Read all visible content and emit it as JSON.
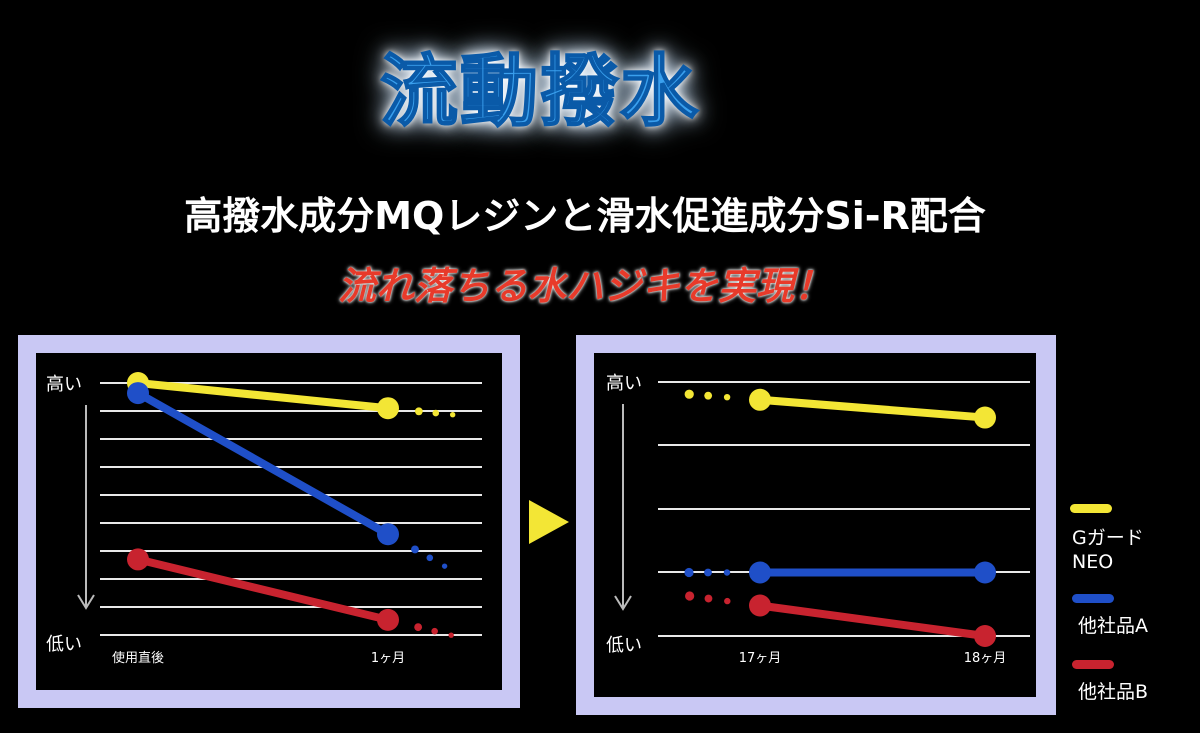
{
  "title": "流動撥水",
  "subtitle": "高撥水成分MQレジンと滑水促進成分Si-R配合",
  "tagline": "流れ落ちる水ハジキを実現！",
  "colors": {
    "series_g_guard": "#f3e635",
    "series_a": "#1f4fc8",
    "series_b": "#c8232f",
    "panel_frame": "#c9c8f4",
    "next_arrow": "#f3e635"
  },
  "legend": {
    "items": [
      {
        "label_line1": "Gガード",
        "label_line2": "NEO",
        "color": "#f3e635"
      },
      {
        "label_line1": "他社品A",
        "label_line2": "",
        "color": "#1f4fc8"
      },
      {
        "label_line1": "他社品B",
        "label_line2": "",
        "color": "#c8232f"
      }
    ]
  },
  "chart_data": [
    {
      "type": "line",
      "title": "",
      "y_axis": {
        "top_label": "高い",
        "bottom_label": "低い",
        "min": 0,
        "max": 10,
        "direction_arrow": "down"
      },
      "x": [
        "使用直後",
        "1ヶ月"
      ],
      "series": [
        {
          "name": "Gガード NEO",
          "values": [
            10.0,
            9.0
          ],
          "trailing": "dotted"
        },
        {
          "name": "他社品A",
          "values": [
            9.6,
            4.0
          ],
          "trailing": "dotted"
        },
        {
          "name": "他社品B",
          "values": [
            3.0,
            0.6
          ],
          "trailing": "dotted"
        }
      ],
      "grid": true
    },
    {
      "type": "line",
      "title": "",
      "y_axis": {
        "top_label": "高い",
        "bottom_label": "低い",
        "min": 0,
        "max": 10
      },
      "x": [
        "17ヶ月",
        "18ヶ月"
      ],
      "series": [
        {
          "name": "Gガード NEO",
          "values": [
            9.3,
            8.6
          ],
          "leading": "dotted"
        },
        {
          "name": "他社品A",
          "values": [
            2.5,
            2.5
          ],
          "leading": "dotted"
        },
        {
          "name": "他社品B",
          "values": [
            1.2,
            0.0
          ],
          "leading": "dotted"
        }
      ],
      "grid": true
    }
  ]
}
